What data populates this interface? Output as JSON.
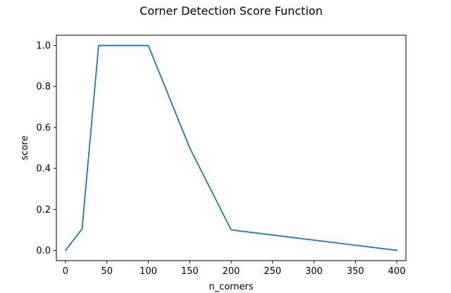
{
  "chart_data": {
    "type": "line",
    "title": "Corner Detection Score Function",
    "xlabel": "n_corners",
    "ylabel": "score",
    "xlim": [
      -11,
      411
    ],
    "ylim": [
      -0.05,
      1.05
    ],
    "xticks": [
      0,
      50,
      100,
      150,
      200,
      250,
      300,
      350,
      400
    ],
    "xtick_labels": [
      "0",
      "50",
      "100",
      "150",
      "200",
      "250",
      "300",
      "350",
      "400"
    ],
    "yticks": [
      0.0,
      0.2,
      0.4,
      0.6,
      0.8,
      1.0
    ],
    "ytick_labels": [
      "0.0",
      "0.2",
      "0.4",
      "0.6",
      "0.8",
      "1.0"
    ],
    "grid": false,
    "series": [
      {
        "color": "#1f77b4",
        "x": [
          0,
          20,
          40,
          100,
          150,
          200,
          400
        ],
        "y": [
          0.0,
          0.105,
          1.0,
          1.0,
          0.5,
          0.1,
          0.0
        ]
      }
    ]
  }
}
